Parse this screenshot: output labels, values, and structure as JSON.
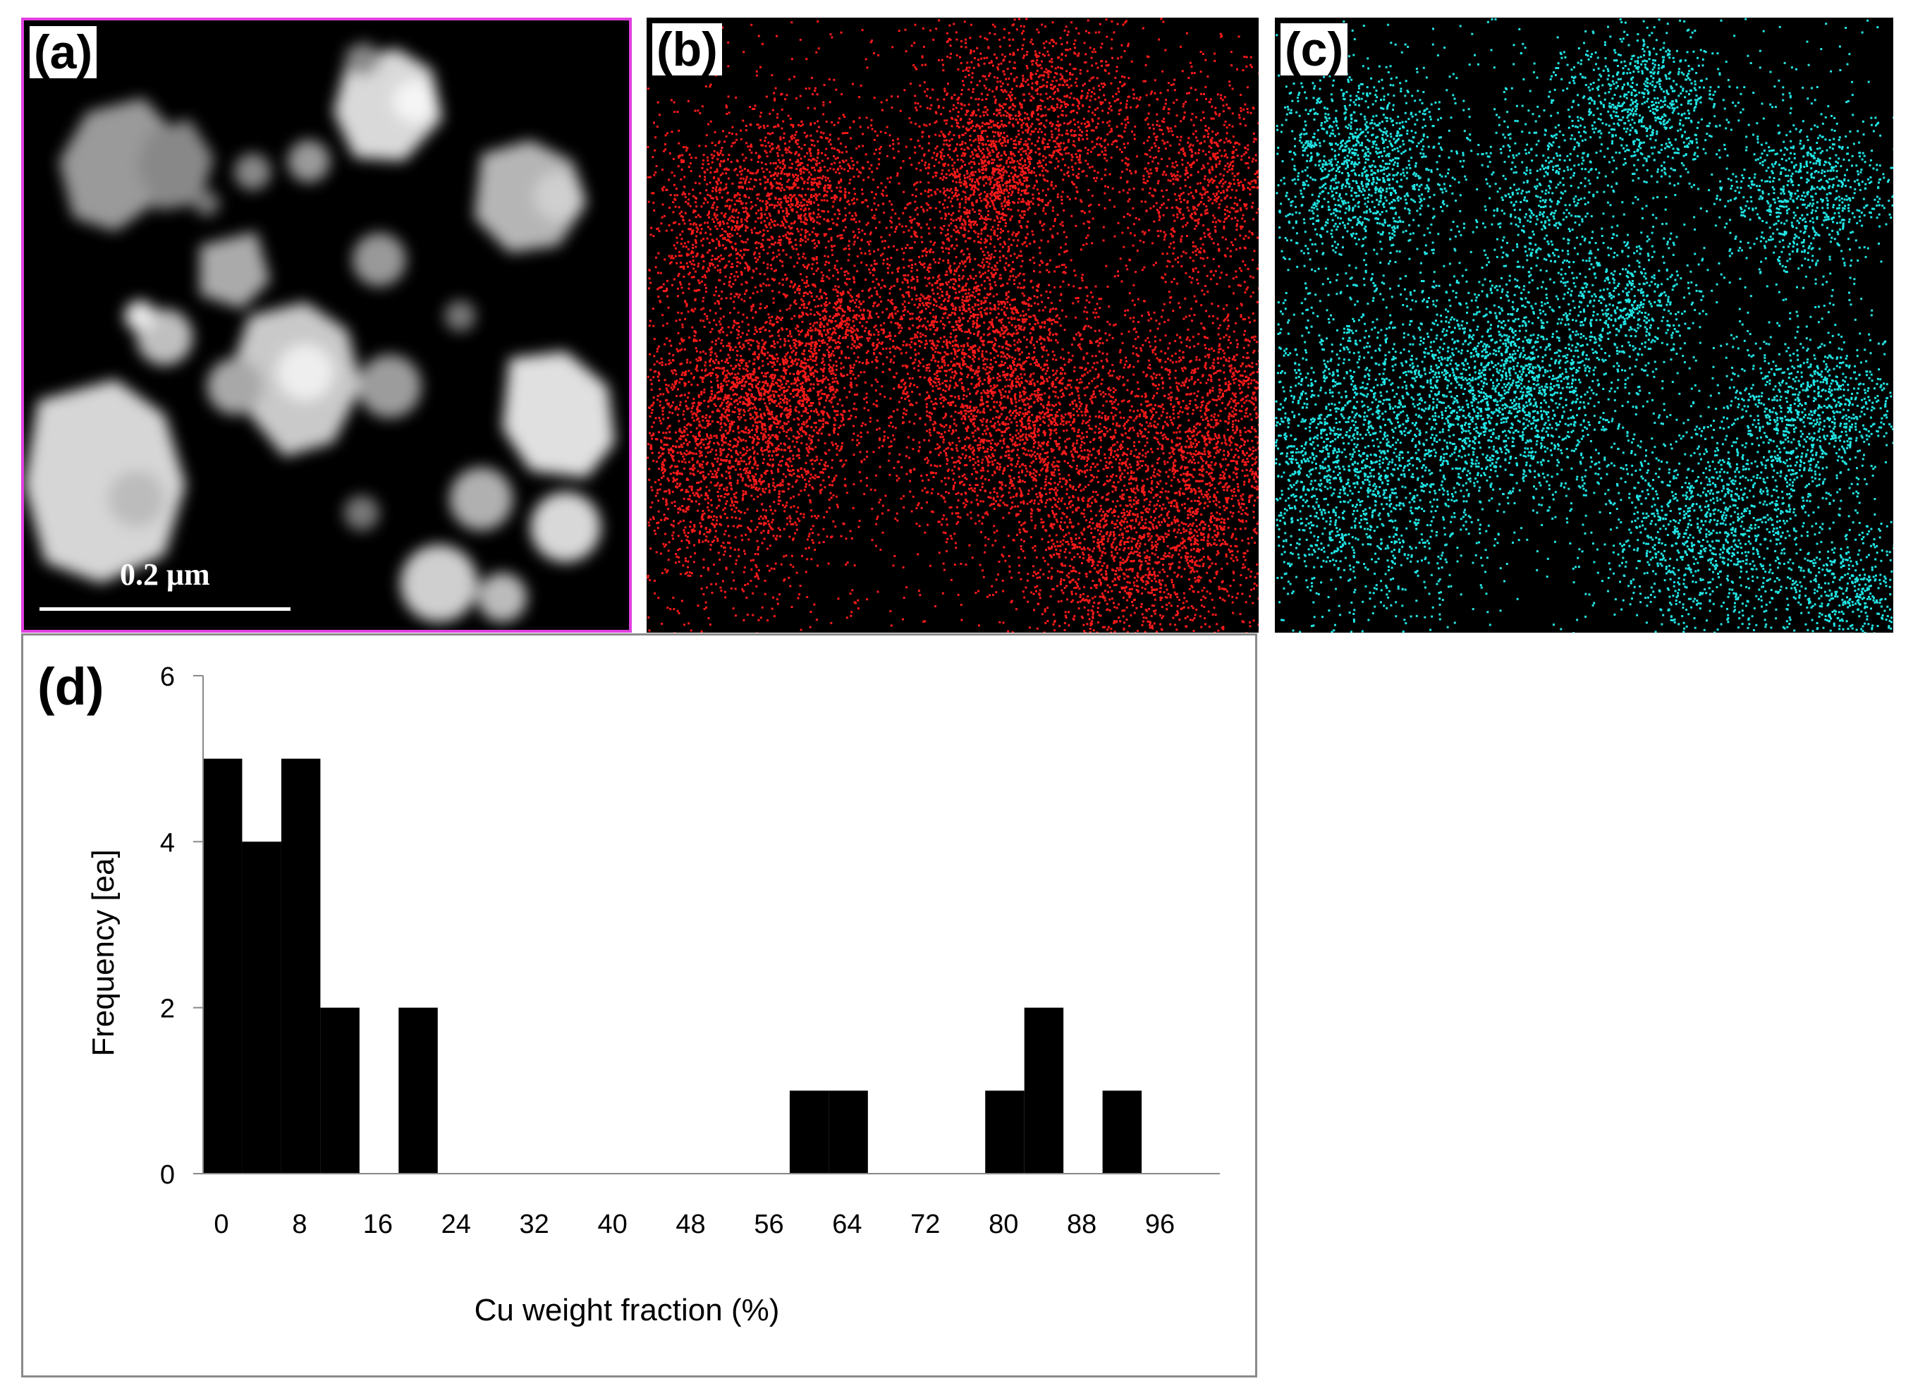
{
  "panels": {
    "a": {
      "label": "(a)",
      "scale_label": "0.2 μm"
    },
    "b": {
      "label": "(b)",
      "color": "#ff1a1a"
    },
    "c": {
      "label": "(c)",
      "color": "#22e6e6"
    },
    "d": {
      "label": "(d)"
    }
  },
  "chart_data": {
    "type": "bar",
    "title": "",
    "xlabel": "Cu weight fraction (%)",
    "ylabel": "Frequency [ea]",
    "bin_width": 4,
    "bin_starts": [
      0,
      4,
      8,
      12,
      20,
      60,
      64,
      80,
      84,
      92
    ],
    "values": [
      5,
      4,
      5,
      2,
      2,
      1,
      1,
      1,
      2,
      1
    ],
    "xlim": [
      0,
      104
    ],
    "ylim": [
      0,
      6
    ],
    "x_ticks": [
      0,
      8,
      16,
      24,
      32,
      40,
      48,
      56,
      64,
      72,
      80,
      88,
      96
    ],
    "y_ticks": [
      0,
      2,
      4,
      6
    ],
    "bar_color": "#000000",
    "grid": false,
    "legend": "none"
  }
}
